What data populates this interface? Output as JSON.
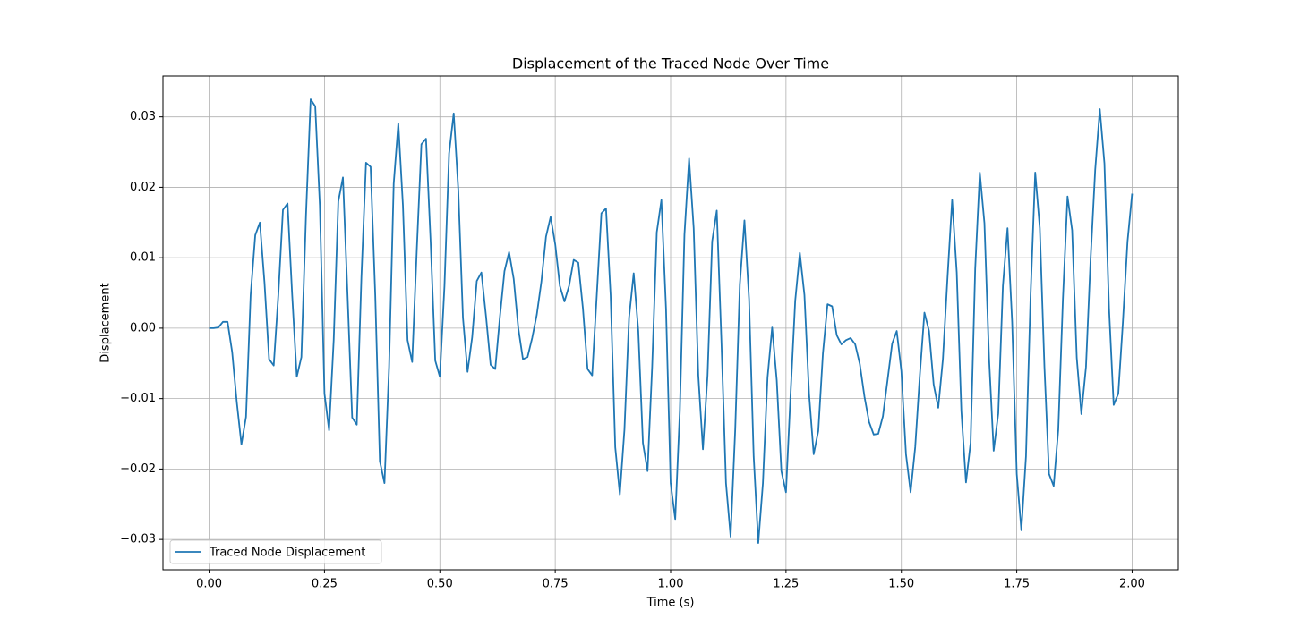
{
  "chart_data": {
    "type": "line",
    "title": "Displacement of the Traced Node Over Time",
    "x_label": "Time (s)",
    "y_label": "Displacement",
    "x": [
      0,
      0.01,
      0.02,
      0.03,
      0.04,
      0.05,
      0.06,
      0.07,
      0.08,
      0.09,
      0.1,
      0.11,
      0.12,
      0.13,
      0.14,
      0.15,
      0.16,
      0.17,
      0.18,
      0.19,
      0.2,
      0.21,
      0.22,
      0.23,
      0.24,
      0.25,
      0.26,
      0.27,
      0.28,
      0.29,
      0.3,
      0.31,
      0.32,
      0.33,
      0.34,
      0.35,
      0.36,
      0.37,
      0.38,
      0.39,
      0.4,
      0.41,
      0.42,
      0.43,
      0.44,
      0.45,
      0.46,
      0.47,
      0.48,
      0.49,
      0.5,
      0.51,
      0.52,
      0.53,
      0.54,
      0.55,
      0.56,
      0.57,
      0.58,
      0.59,
      0.6,
      0.61,
      0.62,
      0.63,
      0.64,
      0.65,
      0.66,
      0.67,
      0.68,
      0.69,
      0.7,
      0.71,
      0.72,
      0.73,
      0.74,
      0.75,
      0.76,
      0.77,
      0.78,
      0.79,
      0.8,
      0.81,
      0.82,
      0.83,
      0.84,
      0.85,
      0.86,
      0.87,
      0.88,
      0.89,
      0.9,
      0.91,
      0.92,
      0.93,
      0.94,
      0.95,
      0.96,
      0.97,
      0.98,
      0.99,
      1,
      1.01,
      1.02,
      1.03,
      1.04,
      1.05,
      1.06,
      1.07,
      1.08,
      1.09,
      1.1,
      1.11,
      1.12,
      1.13,
      1.14,
      1.15,
      1.16,
      1.17,
      1.18,
      1.19,
      1.2,
      1.21,
      1.22,
      1.23,
      1.24,
      1.25,
      1.26,
      1.27,
      1.28,
      1.29,
      1.3,
      1.31,
      1.32,
      1.33,
      1.34,
      1.35,
      1.36,
      1.37,
      1.38,
      1.39,
      1.4,
      1.41,
      1.42,
      1.43,
      1.44,
      1.45,
      1.46,
      1.47,
      1.48,
      1.49,
      1.5,
      1.51,
      1.52,
      1.53,
      1.54,
      1.55,
      1.56,
      1.57,
      1.58,
      1.59,
      1.6,
      1.61,
      1.62,
      1.63,
      1.64,
      1.65,
      1.66,
      1.67,
      1.68,
      1.69,
      1.7,
      1.71,
      1.72,
      1.73,
      1.74,
      1.75,
      1.76,
      1.77,
      1.78,
      1.79,
      1.8,
      1.81,
      1.82,
      1.83,
      1.84,
      1.85,
      1.86,
      1.87,
      1.88,
      1.89,
      1.9,
      1.91,
      1.92,
      1.93,
      1.94,
      1.95,
      1.96,
      1.97,
      1.98,
      1.99,
      2
    ],
    "series": [
      {
        "name": "Traced Node Displacement",
        "color": "#1f77b4",
        "values": [
          0,
          0,
          0.0001,
          0.0009,
          0.0009,
          -0.0034,
          -0.0105,
          -0.0165,
          -0.0126,
          0.0047,
          0.0132,
          0.015,
          0.0065,
          -0.0044,
          -0.0053,
          0.0047,
          0.0168,
          0.0177,
          0.0047,
          -0.0069,
          -0.0041,
          0.0161,
          0.0325,
          0.0315,
          0.0174,
          -0.0093,
          -0.0145,
          -0.0017,
          0.018,
          0.0214,
          0.0047,
          -0.0127,
          -0.0137,
          0.0072,
          0.0235,
          0.0229,
          0.0047,
          -0.0189,
          -0.022,
          -0.0055,
          0.0205,
          0.0291,
          0.0174,
          -0.0017,
          -0.0048,
          0.0111,
          0.0261,
          0.0269,
          0.0123,
          -0.0046,
          -0.0069,
          0.006,
          0.0248,
          0.0305,
          0.0196,
          0.0015,
          -0.0062,
          -0.0013,
          0.0067,
          0.0079,
          0.0017,
          -0.0052,
          -0.0058,
          0.0015,
          0.0081,
          0.0108,
          0.007,
          0,
          -0.0044,
          -0.0041,
          -0.0014,
          0.0019,
          0.0066,
          0.013,
          0.0158,
          0.0119,
          0.006,
          0.0038,
          0.006,
          0.0097,
          0.0093,
          0.0028,
          -0.0058,
          -0.0067,
          0.0047,
          0.0163,
          0.017,
          0.0047,
          -0.0169,
          -0.0236,
          -0.0144,
          0.0015,
          0.0078,
          -0.0004,
          -0.0163,
          -0.0203,
          -0.0055,
          0.0136,
          0.0182,
          0.0028,
          -0.022,
          -0.0271,
          -0.0118,
          0.0133,
          0.0241,
          0.0142,
          -0.0067,
          -0.0172,
          -0.0067,
          0.0123,
          0.0167,
          -0.0017,
          -0.022,
          -0.0296,
          -0.0144,
          0.0062,
          0.0153,
          0.0041,
          -0.0182,
          -0.0305,
          -0.022,
          -0.007,
          0.0001,
          -0.0074,
          -0.0203,
          -0.0233,
          -0.0093,
          0.0039,
          0.0107,
          0.0047,
          -0.0093,
          -0.0179,
          -0.0146,
          -0.0036,
          0.0034,
          0.0031,
          -0.001,
          -0.0023,
          -0.0017,
          -0.0014,
          -0.0023,
          -0.0051,
          -0.0097,
          -0.0133,
          -0.0151,
          -0.015,
          -0.0125,
          -0.0074,
          -0.0022,
          -0.0004,
          -0.0061,
          -0.0179,
          -0.0233,
          -0.0169,
          -0.0067,
          0.0022,
          -0.0004,
          -0.008,
          -0.0113,
          -0.0044,
          0.0072,
          0.0182,
          0.0079,
          -0.0118,
          -0.0219,
          -0.0163,
          0.0085,
          0.0221,
          0.0149,
          -0.0042,
          -0.0174,
          -0.0121,
          0.006,
          0.0142,
          0.0009,
          -0.0207,
          -0.0287,
          -0.0182,
          0.0047,
          0.0221,
          0.0142,
          -0.0055,
          -0.0207,
          -0.0224,
          -0.0144,
          0.0041,
          0.0187,
          0.0139,
          -0.0042,
          -0.0122,
          -0.0055,
          0.0098,
          0.0225,
          0.0311,
          0.0234,
          0.0028,
          -0.0109,
          -0.0093,
          0.0009,
          0.0123,
          0.0191
        ]
      }
    ],
    "xlim": [
      -0.1,
      2.1
    ],
    "xticks": [
      {
        "value": 0,
        "label": "0.00"
      },
      {
        "value": 0.25,
        "label": "0.25"
      },
      {
        "value": 0.5,
        "label": "0.50"
      },
      {
        "value": 0.75,
        "label": "0.75"
      },
      {
        "value": 1,
        "label": "1.00"
      },
      {
        "value": 1.25,
        "label": "1.25"
      },
      {
        "value": 1.5,
        "label": "1.50"
      },
      {
        "value": 1.75,
        "label": "1.75"
      },
      {
        "value": 2,
        "label": "2.00"
      }
    ],
    "ylim": [
      -0.0343,
      0.0358
    ],
    "yticks": [
      {
        "value": -0.03,
        "label": "−0.03"
      },
      {
        "value": -0.02,
        "label": "−0.02"
      },
      {
        "value": -0.01,
        "label": "−0.01"
      },
      {
        "value": 0,
        "label": "0.00"
      },
      {
        "value": 0.01,
        "label": "0.01"
      },
      {
        "value": 0.02,
        "label": "0.02"
      },
      {
        "value": 0.03,
        "label": "0.03"
      }
    ],
    "grid": true,
    "legend": "lower left"
  }
}
